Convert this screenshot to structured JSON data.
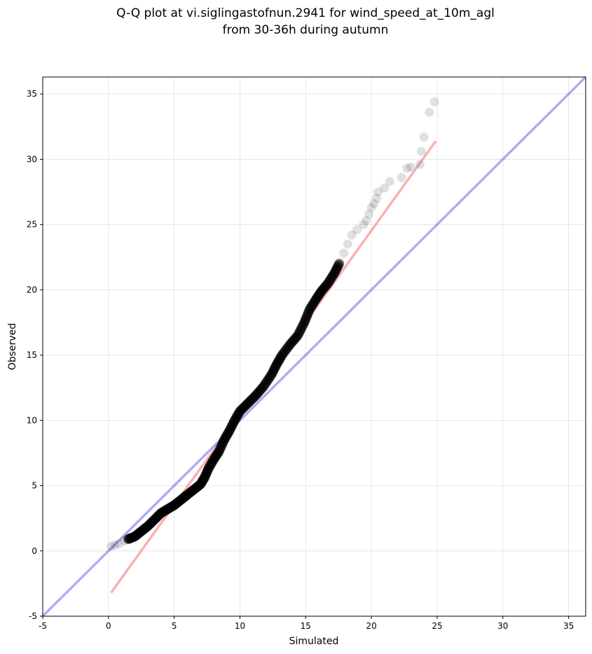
{
  "chart_data": {
    "type": "scatter",
    "title_line1": "Q-Q plot at vi.siglingastofnun.2941 for wind_speed_at_10m_agl",
    "title_line2": "from 30-36h during autumn",
    "xlabel": "Simulated",
    "ylabel": "Observed",
    "xlim": [
      -5,
      36.3
    ],
    "ylim": [
      -5,
      36.3
    ],
    "xticks": [
      "-5",
      "0",
      "5",
      "10",
      "15",
      "20",
      "25",
      "30",
      "35"
    ],
    "yticks": [
      "-5",
      "0",
      "5",
      "10",
      "15",
      "20",
      "25",
      "30",
      "35"
    ],
    "grid": true,
    "colors": {
      "points": "#000000",
      "identity_line": "#0000dd",
      "fit_line": "#ee2222",
      "grid": "#e6e6e6"
    },
    "identity_line": {
      "x": [
        -5,
        36.3
      ],
      "y": [
        -5,
        36.3
      ]
    },
    "fit_line": {
      "x": [
        0.2,
        24.9
      ],
      "y": [
        -3.2,
        31.4
      ]
    },
    "tail_points": [
      [
        0.2,
        0.35
      ],
      [
        0.5,
        0.45
      ],
      [
        0.8,
        0.55
      ],
      [
        1.2,
        0.75
      ],
      [
        1.5,
        0.9
      ],
      [
        17.6,
        22.1
      ],
      [
        17.9,
        22.8
      ],
      [
        18.2,
        23.5
      ],
      [
        18.5,
        24.2
      ],
      [
        18.9,
        24.6
      ],
      [
        19.4,
        25.0
      ],
      [
        19.6,
        25.3
      ],
      [
        19.8,
        25.8
      ],
      [
        20.0,
        26.3
      ],
      [
        20.2,
        26.6
      ],
      [
        20.4,
        27.0
      ],
      [
        20.5,
        27.5
      ],
      [
        21.0,
        27.8
      ],
      [
        21.4,
        28.3
      ],
      [
        22.3,
        28.6
      ],
      [
        22.7,
        29.3
      ],
      [
        23.0,
        29.4
      ],
      [
        23.7,
        29.6
      ],
      [
        23.8,
        30.6
      ],
      [
        24.0,
        31.7
      ],
      [
        24.4,
        33.6
      ],
      [
        24.8,
        34.4
      ]
    ],
    "dense_curve": [
      [
        1.5,
        0.9
      ],
      [
        2.0,
        1.1
      ],
      [
        2.5,
        1.5
      ],
      [
        3.0,
        1.9
      ],
      [
        3.5,
        2.4
      ],
      [
        4.0,
        2.9
      ],
      [
        4.5,
        3.2
      ],
      [
        5.0,
        3.5
      ],
      [
        5.5,
        3.9
      ],
      [
        6.0,
        4.3
      ],
      [
        6.5,
        4.7
      ],
      [
        7.0,
        5.1
      ],
      [
        7.3,
        5.6
      ],
      [
        7.6,
        6.3
      ],
      [
        8.0,
        7.0
      ],
      [
        8.4,
        7.6
      ],
      [
        8.8,
        8.5
      ],
      [
        9.2,
        9.2
      ],
      [
        9.6,
        10.0
      ],
      [
        10.0,
        10.7
      ],
      [
        10.6,
        11.3
      ],
      [
        11.2,
        11.9
      ],
      [
        11.8,
        12.6
      ],
      [
        12.4,
        13.5
      ],
      [
        12.8,
        14.3
      ],
      [
        13.2,
        15.0
      ],
      [
        13.8,
        15.8
      ],
      [
        14.4,
        16.5
      ],
      [
        14.9,
        17.5
      ],
      [
        15.3,
        18.5
      ],
      [
        15.8,
        19.3
      ],
      [
        16.2,
        19.9
      ],
      [
        16.7,
        20.5
      ],
      [
        17.2,
        21.3
      ],
      [
        17.6,
        22.1
      ]
    ]
  }
}
